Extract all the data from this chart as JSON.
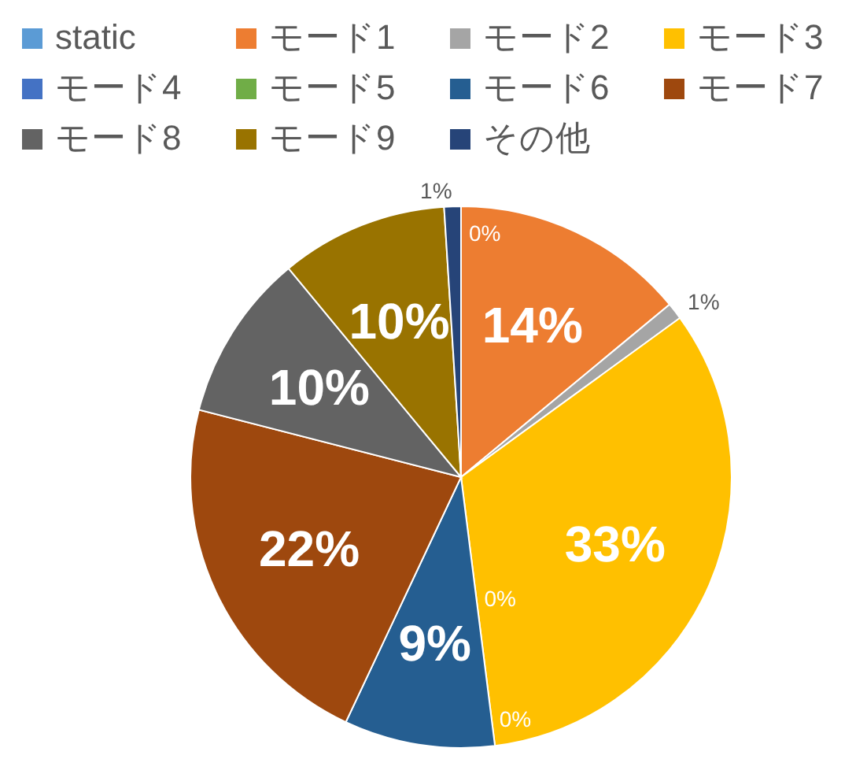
{
  "chart_data": {
    "type": "pie",
    "categories": [
      "static",
      "モード1",
      "モード2",
      "モード3",
      "モード4",
      "モード5",
      "モード6",
      "モード7",
      "モード8",
      "モード9",
      "その他"
    ],
    "values": [
      0,
      14,
      1,
      33,
      0,
      0,
      9,
      22,
      10,
      10,
      1
    ],
    "colors": [
      "#5b9bd5",
      "#ed7d31",
      "#a5a5a5",
      "#ffc000",
      "#4472c4",
      "#70ad47",
      "#255e91",
      "#9e480e",
      "#636363",
      "#997300",
      "#264478"
    ],
    "value_labels": [
      "0%",
      "14%",
      "1%",
      "33%",
      "0%",
      "0%",
      "9%",
      "22%",
      "10%",
      "10%",
      "1%"
    ],
    "legend": "top"
  }
}
